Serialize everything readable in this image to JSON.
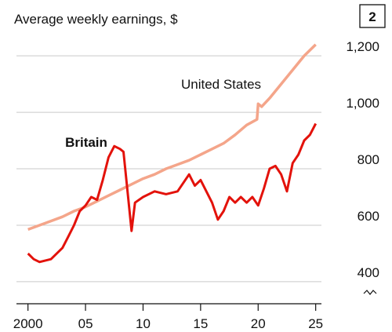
{
  "chart_data": {
    "type": "line",
    "title": "Average weekly earnings, $",
    "chart_number": "2",
    "xlim": [
      1999,
      2025.5
    ],
    "xticks": [
      2000,
      {
        "value": 2005,
        "label": "05"
      },
      {
        "value": 2010,
        "label": "10"
      },
      {
        "value": 2015,
        "label": "15"
      },
      {
        "value": 2020,
        "label": "20"
      },
      {
        "value": 2025,
        "label": "25"
      }
    ],
    "ylim": [
      322,
      1242
    ],
    "yticks": [
      400,
      600,
      800,
      {
        "value": 1000,
        "label": "1,000"
      },
      {
        "value": 1200,
        "label": "1,200"
      }
    ],
    "grid": true,
    "series": [
      {
        "name": "United States",
        "color": "#f4a58a",
        "x": [
          2000,
          2001,
          2002,
          2003,
          2004,
          2005,
          2006,
          2007,
          2008,
          2009,
          2010,
          2011,
          2012,
          2013,
          2014,
          2015,
          2016,
          2017,
          2018,
          2019,
          2019.9,
          2020,
          2020.3,
          2021,
          2022,
          2023,
          2024,
          2025
        ],
        "values": [
          585,
          600,
          615,
          630,
          650,
          665,
          685,
          705,
          725,
          745,
          765,
          780,
          800,
          815,
          830,
          850,
          870,
          890,
          920,
          955,
          975,
          1030,
          1020,
          1050,
          1100,
          1150,
          1200,
          1240
        ]
      },
      {
        "name": "Britain",
        "color": "#e3120b",
        "x": [
          2000,
          2000.5,
          2001,
          2002,
          2003,
          2003.5,
          2004,
          2004.5,
          2005,
          2005.5,
          2006,
          2006.5,
          2007,
          2007.5,
          2008,
          2008.3,
          2008.7,
          2009,
          2009.3,
          2010,
          2011,
          2012,
          2013,
          2014,
          2014.5,
          2015,
          2015.5,
          2016,
          2016.5,
          2017,
          2017.5,
          2018,
          2018.5,
          2019,
          2019.5,
          2020,
          2020.5,
          2021,
          2021.5,
          2022,
          2022.5,
          2023,
          2023.5,
          2024,
          2024.5,
          2025
        ],
        "values": [
          500,
          480,
          470,
          480,
          520,
          560,
          600,
          650,
          670,
          700,
          690,
          760,
          840,
          880,
          870,
          860,
          700,
          580,
          680,
          700,
          720,
          710,
          720,
          780,
          740,
          760,
          720,
          680,
          620,
          650,
          700,
          680,
          700,
          680,
          700,
          670,
          730,
          800,
          810,
          780,
          720,
          820,
          850,
          900,
          920,
          960
        ]
      }
    ]
  }
}
